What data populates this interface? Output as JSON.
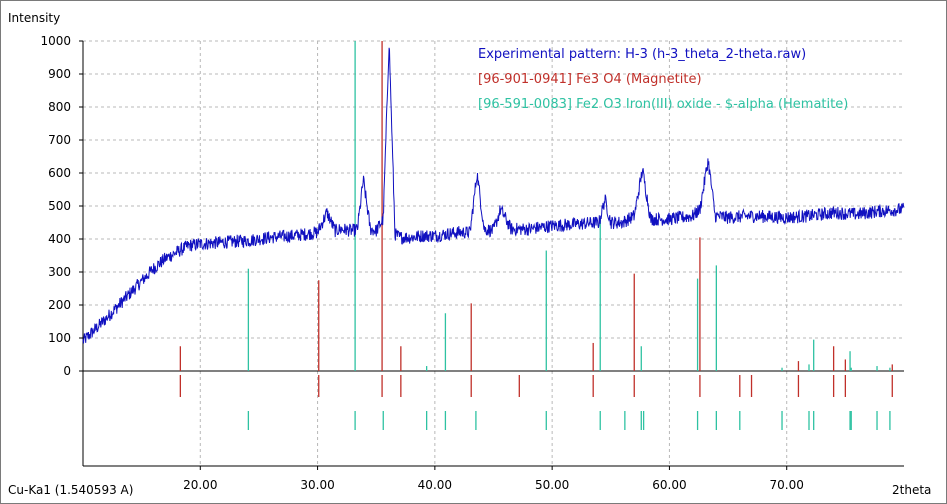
{
  "chart_data": {
    "type": "line",
    "ylabel": "Intensity",
    "xlabel": "2theta",
    "radiation_label": "Cu-Ka1 (1.540593 A)",
    "xlim": [
      10,
      80
    ],
    "ylim": [
      0,
      1000
    ],
    "x_ticks": [
      20,
      30,
      40,
      50,
      60,
      70
    ],
    "x_tick_labels": [
      "20.00",
      "30.00",
      "40.00",
      "50.00",
      "60.00",
      "70.00"
    ],
    "y_ticks": [
      0,
      100,
      200,
      300,
      400,
      500,
      600,
      700,
      800,
      900,
      1000
    ],
    "y_tick_labels": [
      "0",
      "100",
      "200",
      "300",
      "400",
      "500",
      "600",
      "700",
      "800",
      "900",
      "1000"
    ],
    "grid": true,
    "legend_position": "top-right",
    "series": [
      {
        "name": "Experimental pattern: H-3 (h-3_theta_2-theta.raw)",
        "color": "#1010c0",
        "x": [
          10,
          12,
          14,
          16,
          17,
          18,
          19,
          20,
          22,
          24,
          26,
          28,
          30,
          30.8,
          31.5,
          32,
          33,
          33.4,
          33.9,
          34.5,
          35,
          35.6,
          36.1,
          36.6,
          37,
          38,
          39,
          40,
          42,
          43,
          43.6,
          44.2,
          45,
          45.6,
          46.5,
          48,
          50,
          52,
          54,
          54.5,
          55,
          56,
          57,
          57.7,
          58.4,
          60,
          62,
          62.6,
          63.3,
          63.9,
          65,
          67,
          70,
          72,
          74,
          76,
          78,
          80
        ],
        "y": [
          90,
          160,
          235,
          310,
          340,
          360,
          380,
          385,
          390,
          395,
          405,
          410,
          420,
          480,
          425,
          430,
          425,
          430,
          580,
          430,
          425,
          460,
          1000,
          415,
          405,
          405,
          410,
          410,
          420,
          420,
          600,
          430,
          425,
          490,
          430,
          430,
          440,
          445,
          450,
          520,
          450,
          450,
          470,
          610,
          460,
          460,
          470,
          490,
          640,
          470,
          465,
          470,
          465,
          470,
          480,
          475,
          485,
          490
        ]
      },
      {
        "name": "[96-901-0941] Fe3 O4  (Magnetite)",
        "color": "#c0302a",
        "type": "stick",
        "x": [
          18.3,
          30.1,
          35.5,
          37.1,
          43.1,
          47.2,
          53.5,
          57.0,
          62.6,
          66.0,
          67.0,
          71.0,
          74.0,
          75.0,
          79.0
        ],
        "y": [
          75,
          275,
          1000,
          75,
          205,
          0,
          85,
          295,
          405,
          0,
          0,
          30,
          75,
          35,
          20
        ]
      },
      {
        "name": "[96-591-0083] Fe2 O3 Iron(III) oxide - $-alpha (Hematite)",
        "color": "#2ec2a2",
        "type": "stick",
        "x": [
          24.1,
          33.2,
          35.6,
          39.3,
          40.9,
          43.5,
          49.5,
          54.1,
          56.2,
          57.6,
          57.8,
          62.4,
          64.0,
          66.0,
          69.6,
          71.9,
          72.3,
          75.4,
          75.5,
          77.7,
          78.8
        ],
        "y": [
          310,
          1000,
          0,
          15,
          175,
          0,
          365,
          460,
          0,
          75,
          0,
          280,
          320,
          0,
          10,
          20,
          95,
          60,
          10,
          15,
          10
        ]
      }
    ]
  }
}
